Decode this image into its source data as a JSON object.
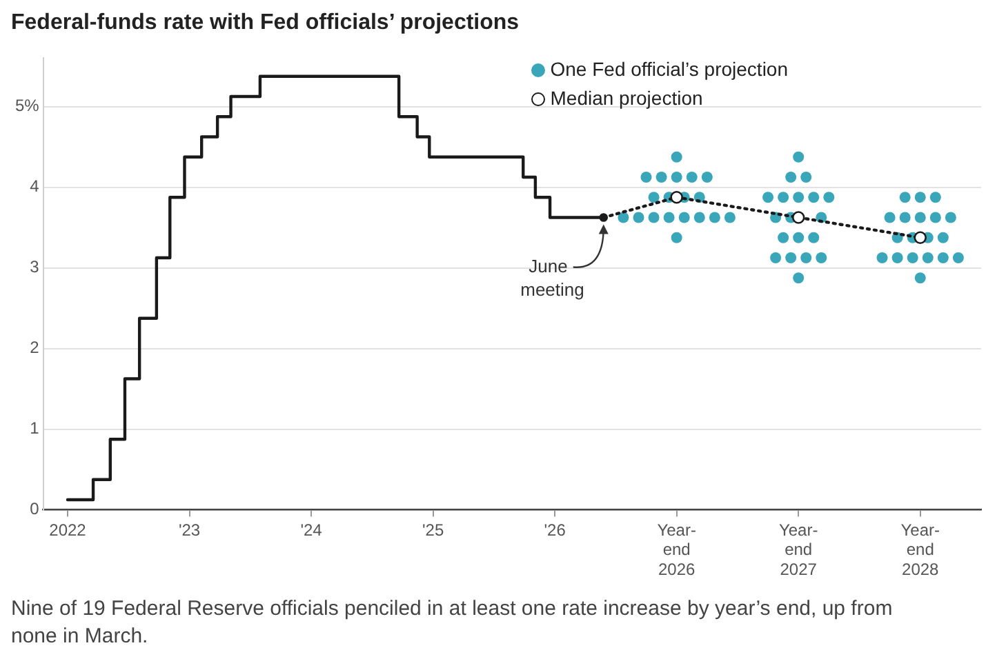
{
  "chart_data": {
    "type": "line",
    "title": "Federal-funds rate with Fed officials’ projections",
    "xlim": [
      2021.8,
      2029.5
    ],
    "xticks": [
      2022,
      {
        "value": 2023,
        "label": "'23"
      },
      {
        "value": 2024,
        "label": "'24"
      },
      {
        "value": 2025,
        "label": "'25"
      },
      {
        "value": 2026,
        "label": "'26"
      },
      {
        "value": 2027,
        "label": "Year-end 2026"
      },
      {
        "value": 2028,
        "label": "Year-end 2027"
      },
      {
        "value": 2029,
        "label": "Year-end 2028"
      }
    ],
    "ylim": [
      0,
      5.6
    ],
    "yticks": [
      0,
      1,
      2,
      3,
      4,
      {
        "value": 5,
        "label": "5%"
      }
    ],
    "grid": "y",
    "legend": "top right",
    "series": [
      {
        "type": "step",
        "color": "#1a1a1a",
        "marker": "none",
        "x": [
          2022,
          2022.21,
          2022.35,
          2022.47,
          2022.59,
          2022.73,
          2022.84,
          2022.96,
          2023.1,
          2023.23,
          2023.34,
          2023.58,
          2024.72,
          2024.87,
          2024.97,
          2025.74,
          2025.84,
          2025.96,
          2026.4
        ],
        "values": [
          0.125,
          0.375,
          0.875,
          1.625,
          2.375,
          3.125,
          3.875,
          4.375,
          4.625,
          4.875,
          5.125,
          5.375,
          4.875,
          4.625,
          4.375,
          4.125,
          3.875,
          3.625,
          3.625
        ]
      },
      {
        "type": "scatter",
        "name": "One Fed official’s projection",
        "color": "#3aa6b9",
        "marker": "circle",
        "x": [
          2027,
          2026.75,
          2026.875,
          2027,
          2027.125,
          2027.25,
          2026.8125,
          2026.9375,
          2027.0625,
          2027.1875,
          2026.5625,
          2026.6875,
          2026.8125,
          2026.9375,
          2027.0625,
          2027.1875,
          2027.3125,
          2027.4375,
          2027,
          2028,
          2027.9375,
          2028.0625,
          2027.75,
          2027.875,
          2028,
          2028.125,
          2028.25,
          2027.8125,
          2027.9375,
          2028.1875,
          2027.875,
          2028,
          2028.125,
          2027.8125,
          2027.9375,
          2028.0625,
          2028.1875,
          2028,
          2028.875,
          2029,
          2029.125,
          2028.75,
          2028.875,
          2029,
          2029.125,
          2029.25,
          2028.8125,
          2028.9375,
          2029.0625,
          2029.1875,
          2028.6875,
          2028.8125,
          2028.9375,
          2029.0625,
          2029.1875,
          2029.3125,
          2029
        ],
        "values": [
          4.375,
          4.125,
          4.125,
          4.125,
          4.125,
          4.125,
          3.875,
          3.875,
          3.875,
          3.875,
          3.625,
          3.625,
          3.625,
          3.625,
          3.625,
          3.625,
          3.625,
          3.625,
          3.375,
          4.375,
          4.125,
          4.125,
          3.875,
          3.875,
          3.875,
          3.875,
          3.875,
          3.625,
          3.625,
          3.625,
          3.375,
          3.375,
          3.375,
          3.125,
          3.125,
          3.125,
          3.125,
          2.875,
          3.875,
          3.875,
          3.875,
          3.625,
          3.625,
          3.625,
          3.625,
          3.625,
          3.375,
          3.375,
          3.375,
          3.375,
          3.125,
          3.125,
          3.125,
          3.125,
          3.125,
          3.125,
          2.875
        ]
      },
      {
        "type": "line",
        "name": "Median projection",
        "color": "#1a1a1a",
        "marker": "circle",
        "line_style": "dotted",
        "x": [
          2026.4,
          2027,
          2028,
          2029
        ],
        "values": [
          3.625,
          3.875,
          3.625,
          3.375
        ]
      }
    ],
    "annotations": [
      {
        "text": "June meeting",
        "x": 2026.4,
        "y": 3.625
      },
      "Nine of 19 Federal Reserve officials penciled in at least one rate increase by year’s end, up from none in March."
    ]
  }
}
